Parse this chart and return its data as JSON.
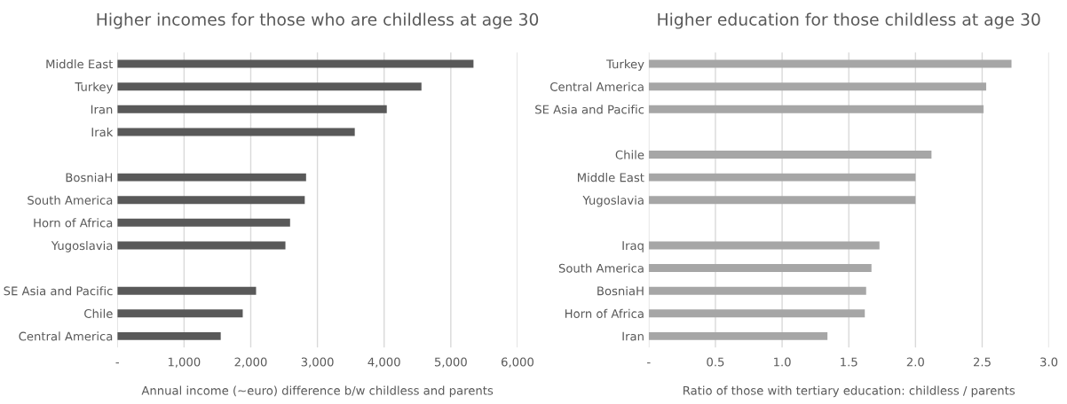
{
  "chart_data": [
    {
      "type": "bar",
      "orientation": "horizontal",
      "title": "Higher incomes for those who are childless at age 30",
      "xlabel": "Annual income (~euro) difference b/w childless and parents",
      "categories": [
        "Middle East",
        "Turkey",
        "Iran",
        "Irak",
        null,
        "BosniaH",
        "South America",
        "Horn of Africa",
        "Yugoslavia",
        null,
        "SE Asia and Pacific",
        "Chile",
        "Central America"
      ],
      "values": [
        5340,
        4560,
        4040,
        3560,
        null,
        2830,
        2810,
        2590,
        2520,
        null,
        2080,
        1880,
        1550
      ],
      "color": "#595959",
      "xlim": [
        0,
        6000
      ],
      "xticks": [
        {
          "value": 0,
          "label": "-"
        },
        {
          "value": 1000,
          "label": "1,000"
        },
        {
          "value": 2000,
          "label": "2,000"
        },
        {
          "value": 3000,
          "label": "3,000"
        },
        {
          "value": 4000,
          "label": "4,000"
        },
        {
          "value": 5000,
          "label": "5,000"
        },
        {
          "value": 6000,
          "label": "6,000"
        }
      ],
      "grid": "x"
    },
    {
      "type": "bar",
      "orientation": "horizontal",
      "title": "Higher education for those childless at age 30",
      "xlabel": "Ratio of those with tertiary education: childless / parents",
      "categories": [
        "Turkey",
        "Central America",
        "SE Asia and Pacific",
        null,
        "Chile",
        "Middle East",
        "Yugoslavia",
        null,
        "Iraq",
        "South America",
        "BosniaH",
        "Horn of Africa",
        "Iran"
      ],
      "values": [
        2.72,
        2.53,
        2.51,
        null,
        2.12,
        2.0,
        2.0,
        null,
        1.73,
        1.67,
        1.63,
        1.62,
        1.34
      ],
      "color": "#a6a6a6",
      "xlim": [
        0,
        3.0
      ],
      "xticks": [
        {
          "value": 0,
          "label": "-"
        },
        0.5,
        {
          "value": 1,
          "label": "1.0"
        },
        1.5,
        {
          "value": 2,
          "label": "2.0"
        },
        2.5,
        {
          "value": 3,
          "label": "3.0"
        }
      ],
      "grid": "x"
    }
  ]
}
